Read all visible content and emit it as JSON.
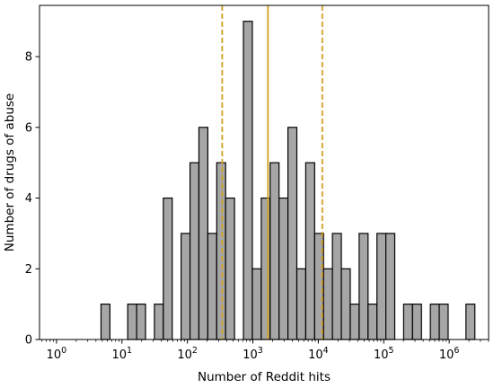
{
  "chart_data": {
    "type": "bar",
    "xlabel": "Number of Reddit hits",
    "ylabel": "Number of drugs of abuse",
    "x_scale": "log",
    "xlim": [
      0.55,
      4000000
    ],
    "ylim": [
      0,
      9.45
    ],
    "x_ticks": [
      {
        "value": 1,
        "base": "10",
        "exp": "0"
      },
      {
        "value": 10,
        "base": "10",
        "exp": "1"
      },
      {
        "value": 100,
        "base": "10",
        "exp": "2"
      },
      {
        "value": 1000,
        "base": "10",
        "exp": "3"
      },
      {
        "value": 10000,
        "base": "10",
        "exp": "4"
      },
      {
        "value": 100000,
        "base": "10",
        "exp": "5"
      },
      {
        "value": 1000000,
        "base": "10",
        "exp": "6"
      }
    ],
    "y_ticks": [
      {
        "value": 0,
        "label": "0"
      },
      {
        "value": 2,
        "label": "2"
      },
      {
        "value": 4,
        "label": "4"
      },
      {
        "value": 6,
        "label": "6"
      },
      {
        "value": 8,
        "label": "8"
      }
    ],
    "bin_edges_log10": [
      0.0,
      0.136,
      0.272,
      0.408,
      0.544,
      0.68,
      0.816,
      0.952,
      1.088,
      1.224,
      1.36,
      1.496,
      1.632,
      1.768,
      1.904,
      2.04,
      2.176,
      2.312,
      2.448,
      2.584,
      2.72,
      2.856,
      2.992,
      3.128,
      3.264,
      3.4,
      3.536,
      3.672,
      3.808,
      3.944,
      4.08,
      4.216,
      4.352,
      4.488,
      4.624,
      4.76,
      4.896,
      5.032,
      5.168,
      5.304,
      5.44,
      5.576,
      5.712,
      5.848,
      5.984,
      6.12,
      6.256,
      6.392
    ],
    "counts": [
      0,
      0,
      0,
      0,
      0,
      1,
      0,
      0,
      1,
      1,
      0,
      1,
      4,
      0,
      3,
      5,
      6,
      3,
      5,
      4,
      0,
      9,
      2,
      4,
      5,
      4,
      6,
      2,
      5,
      3,
      2,
      3,
      2,
      1,
      3,
      1,
      3,
      3,
      0,
      1,
      1,
      0,
      1,
      1,
      0,
      0,
      1
    ],
    "bar_color": "#a6a6a6",
    "edge_color": "#000000",
    "reference_lines": [
      {
        "value": 1700,
        "style": "solid",
        "color": "#d4a020"
      },
      {
        "value": 340,
        "style": "dashed",
        "color": "#d4a020"
      },
      {
        "value": 11500,
        "style": "dashed",
        "color": "#d4a020"
      }
    ],
    "grid": false,
    "legend": "none"
  }
}
